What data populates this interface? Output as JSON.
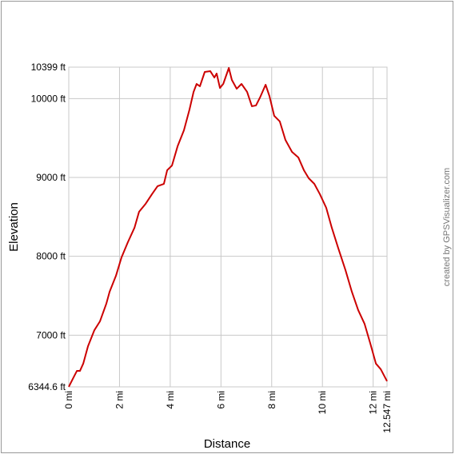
{
  "chart_data": {
    "type": "line",
    "xlabel": "Distance",
    "ylabel": "Elevation",
    "annotation": "created by GPSVisualizer.com",
    "color": "#cc0000",
    "grid": true,
    "x": [
      0,
      0.19,
      0.32,
      0.44,
      0.57,
      0.76,
      1.01,
      1.23,
      1.48,
      1.61,
      1.86,
      2.08,
      2.33,
      2.59,
      2.77,
      3.03,
      3.28,
      3.5,
      3.75,
      3.88,
      4.07,
      4.29,
      4.54,
      4.76,
      4.92,
      5.04,
      5.17,
      5.36,
      5.58,
      5.74,
      5.83,
      5.96,
      6.09,
      6.31,
      6.43,
      6.62,
      6.81,
      7.03,
      7.22,
      7.38,
      7.54,
      7.76,
      7.91,
      8.1,
      8.32,
      8.54,
      8.8,
      9.05,
      9.27,
      9.46,
      9.68,
      9.9,
      10.15,
      10.37,
      10.62,
      10.91,
      11.16,
      11.41,
      11.66,
      11.89,
      12.11,
      12.3,
      12.547
    ],
    "values": [
      6345,
      6466,
      6547,
      6547,
      6639,
      6862,
      7064,
      7176,
      7399,
      7551,
      7753,
      7987,
      8179,
      8362,
      8564,
      8666,
      8788,
      8889,
      8919,
      9092,
      9152,
      9395,
      9598,
      9862,
      10085,
      10186,
      10156,
      10338,
      10348,
      10267,
      10318,
      10135,
      10186,
      10389,
      10237,
      10125,
      10186,
      10085,
      9903,
      9913,
      10014,
      10176,
      10034,
      9781,
      9710,
      9477,
      9325,
      9254,
      9092,
      8990,
      8919,
      8788,
      8615,
      8362,
      8108,
      7824,
      7551,
      7318,
      7145,
      6892,
      6639,
      6568,
      6416
    ],
    "xlim": [
      0,
      12.547
    ],
    "ylim": [
      6344.6,
      10399
    ],
    "xticks": [
      {
        "value": 0,
        "label": "0 mi"
      },
      {
        "value": 2,
        "label": "2 mi"
      },
      {
        "value": 4,
        "label": "4 mi"
      },
      {
        "value": 6,
        "label": "6 mi"
      },
      {
        "value": 8,
        "label": "8 mi"
      },
      {
        "value": 10,
        "label": "10 mi"
      },
      {
        "value": 12,
        "label": "12 mi"
      },
      {
        "value": 12.547,
        "label": "12.547 mi"
      }
    ],
    "yticks": [
      {
        "value": 6344.6,
        "label": "6344.6 ft"
      },
      {
        "value": 7000,
        "label": "7000 ft"
      },
      {
        "value": 8000,
        "label": "8000 ft"
      },
      {
        "value": 9000,
        "label": "9000 ft"
      },
      {
        "value": 10000,
        "label": "10000 ft"
      },
      {
        "value": 10399,
        "label": "10399 ft"
      }
    ]
  }
}
